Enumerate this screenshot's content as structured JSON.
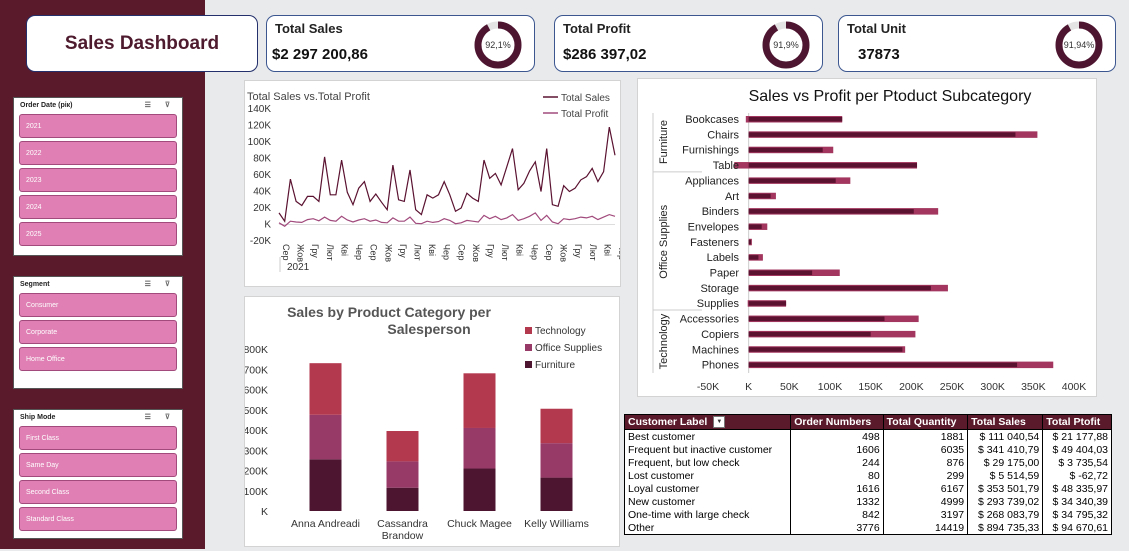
{
  "dashboard": {
    "title": "Sales Dashboard"
  },
  "kpis": [
    {
      "label": "Total Sales",
      "value": "$2 297 200,86",
      "pct_label": "92,1%",
      "pct": 0.921
    },
    {
      "label": "Total Profit",
      "value": "$286 397,02",
      "pct_label": "91,9%",
      "pct": 0.919
    },
    {
      "label": "Total Unit",
      "value": "37873",
      "pct_label": "91,94%",
      "pct": 0.9194
    }
  ],
  "slicers": {
    "order_date": {
      "title": "Order Date (рік)",
      "items": [
        "2021",
        "2022",
        "2023",
        "2024",
        "2025"
      ]
    },
    "segment": {
      "title": "Segment",
      "items": [
        "Consumer",
        "Corporate",
        "Home Office"
      ]
    },
    "ship_mode": {
      "title": "Ship Mode",
      "items": [
        "First Class",
        "Same Day",
        "Second Class",
        "Standard Class"
      ]
    }
  },
  "colors": {
    "sidebar": "#5b1a2c",
    "slicer_item": "#df7fb3",
    "technology": "#b3394f",
    "office_supplies": "#983a68",
    "furniture": "#4e1530",
    "sales_bar": "#5a1230",
    "profit_bar": "#a3365e",
    "line_sales": "#5a1230",
    "line_profit": "#a14a7c"
  },
  "chart_data": [
    {
      "type": "line",
      "title": "Total Sales vs.Total Profit",
      "ylim": [
        -20000,
        140000
      ],
      "yticks": [
        "140K",
        "120K",
        "100K",
        "80K",
        "60K",
        "40K",
        "20K",
        "K",
        "-20K"
      ],
      "x": [
        "Січ",
        "Лют",
        "Бер",
        "Кві",
        "Тра",
        "Чер",
        "Лип",
        "Сер",
        "Вер",
        "Жов",
        "Лис",
        "Гру",
        "Січ",
        "Лют",
        "Бер",
        "Кві",
        "Тра",
        "Чер",
        "Лип",
        "Сер",
        "Вер",
        "Жов",
        "Лис",
        "Гру",
        "Січ",
        "Лют",
        "Бер",
        "Кві",
        "Тра",
        "Чер",
        "Лип",
        "Сер",
        "Вер",
        "Жов",
        "Лис",
        "Гру",
        "Січ",
        "Лют",
        "Бер",
        "Кві",
        "Тра",
        "Чер",
        "Лип",
        "Сер",
        "Вер",
        "Жов",
        "Лис",
        "Гру",
        "Січ",
        "Лют",
        "Бер",
        "Кві",
        "Тра",
        "Чер",
        "Лип",
        "Сер",
        "Вер",
        "Жов",
        "Лис",
        "Гру"
      ],
      "xticks": [
        "Сер",
        "Жов",
        "Гру",
        "Лют",
        "Кві",
        "Чер",
        "Сер",
        "Жов",
        "Гру",
        "Лют",
        "Кві",
        "Чер",
        "Сер",
        "Жов",
        "Гру",
        "Лют",
        "Кві",
        "Чер",
        "Сер",
        "Жов",
        "Гру",
        "Лют",
        "Кві",
        "Чер"
      ],
      "year_label": "2021",
      "series": [
        {
          "name": "Total Sales",
          "values": [
            14000,
            4000,
            55000,
            28000,
            23000,
            34000,
            34000,
            28000,
            82000,
            36000,
            36000,
            78000,
            39000,
            24000,
            44000,
            52000,
            28000,
            37000,
            27000,
            18000,
            72000,
            30000,
            28000,
            66000,
            18000,
            12000,
            36000,
            32000,
            36000,
            52000,
            36000,
            16000,
            20000,
            38000,
            32000,
            28000,
            78000,
            56000,
            62000,
            48000,
            70000,
            92000,
            42000,
            50000,
            65000,
            76000,
            40000,
            92000,
            24000,
            22000,
            47000,
            40000,
            44000,
            54000,
            58000,
            68000,
            52000,
            64000,
            118000,
            84000
          ]
        },
        {
          "name": "Total Profit",
          "values": [
            2000,
            -2000,
            4000,
            3000,
            2500,
            6000,
            7000,
            4500,
            9000,
            5000,
            4000,
            10000,
            5500,
            3000,
            5500,
            7000,
            4000,
            5500,
            2500,
            2000,
            8000,
            4000,
            4000,
            9000,
            1500,
            1000,
            4000,
            2500,
            3500,
            7000,
            5000,
            1000,
            2000,
            5000,
            4000,
            3000,
            11000,
            7000,
            10000,
            6000,
            8000,
            12000,
            5000,
            7000,
            10000,
            14000,
            5000,
            11000,
            3000,
            1000,
            7000,
            6000,
            7000,
            9000,
            8000,
            10000,
            6000,
            9000,
            12000,
            10000
          ]
        }
      ]
    },
    {
      "type": "bar",
      "title": "Sales by Product Category per Salesperson",
      "categories": [
        "Anna Andreadi",
        "Cassandra Brandow",
        "Chuck Magee",
        "Kelly Williams"
      ],
      "ylim": [
        0,
        800000
      ],
      "yticks": [
        "800K",
        "700K",
        "600K",
        "500K",
        "400K",
        "300K",
        "200K",
        "100K",
        "K"
      ],
      "series": [
        {
          "name": "Furniture",
          "values": [
            255000,
            115000,
            210000,
            165000
          ]
        },
        {
          "name": "Office Supplies",
          "values": [
            220000,
            130000,
            200000,
            170000
          ]
        },
        {
          "name": "Technology",
          "values": [
            255000,
            150000,
            270000,
            170000
          ]
        }
      ]
    },
    {
      "type": "bar",
      "title": "Sales vs Profit per Ptoduct Subcategory",
      "xlim": [
        -50000,
        400000
      ],
      "xticks": [
        "-50K",
        "K",
        "50K",
        "100K",
        "150K",
        "200K",
        "250K",
        "300K",
        "350K",
        "400K"
      ],
      "groups": [
        {
          "name": "Furniture",
          "items": [
            "Bookcases",
            "Chairs",
            "Furnishings",
            "Tables"
          ]
        },
        {
          "name": "Office Supplies",
          "items": [
            "Appliances",
            "Art",
            "Binders",
            "Envelopes",
            "Fasteners",
            "Labels",
            "Paper",
            "Storage",
            "Supplies"
          ]
        },
        {
          "name": "Technology",
          "items": [
            "Accessories",
            "Copiers",
            "Machines",
            "Phones"
          ]
        }
      ],
      "categories": [
        "Bookcases",
        "Chairs",
        "Furnishings",
        "Tables",
        "Appliances",
        "Art",
        "Binders",
        "Envelopes",
        "Fasteners",
        "Labels",
        "Paper",
        "Storage",
        "Supplies",
        "Accessories",
        "Copiers",
        "Machines",
        "Phones"
      ],
      "category_labels": [
        "Bookcases",
        "Chairs",
        "Furnishings",
        "Table",
        "Appliances",
        "Art",
        "Binders",
        "Envelopes",
        "Fasteners",
        "Labels",
        "Paper",
        "Storage",
        "Supplies",
        "Accessories",
        "Copiers",
        "Machines",
        "Phones"
      ],
      "series": [
        {
          "name": "Sales",
          "values": [
            115000,
            328000,
            91000,
            207000,
            107000,
            27000,
            203000,
            16000,
            3000,
            12000,
            78000,
            224000,
            46000,
            167000,
            150000,
            189000,
            330000
          ]
        },
        {
          "name": "Profit",
          "values": [
            -3500,
            27000,
            13000,
            -17700,
            18000,
            6500,
            30000,
            6900,
            950,
            5500,
            34000,
            21000,
            -1200,
            42000,
            55000,
            3400,
            44500
          ]
        }
      ]
    }
  ],
  "table": {
    "headers": [
      "Customer Label",
      "Order Numbers",
      "Total Quantity",
      "Total Sales",
      "Total Ptofit"
    ],
    "rows": [
      [
        "Best customer",
        "498",
        "1881",
        "$ 111 040,54",
        "$ 21 177,88"
      ],
      [
        "Frequent but inactive customer",
        "1606",
        "6035",
        "$ 341 410,79",
        "$ 49 404,03"
      ],
      [
        "Frequent, but low check",
        "244",
        "876",
        "$   29 175,00",
        "$   3 735,54"
      ],
      [
        "Lost customer",
        "80",
        "299",
        "$     5 514,59",
        "$        -62,72"
      ],
      [
        "Loyal customer",
        "1616",
        "6167",
        "$ 353 501,79",
        "$ 48 335,97"
      ],
      [
        "New customer",
        "1332",
        "4999",
        "$ 293 739,02",
        "$ 34 340,39"
      ],
      [
        "One-time with large check",
        "842",
        "3197",
        "$ 268 083,79",
        "$ 34 795,32"
      ],
      [
        "Other",
        "3776",
        "14419",
        "$ 894 735,33",
        "$ 94 670,61"
      ]
    ]
  }
}
